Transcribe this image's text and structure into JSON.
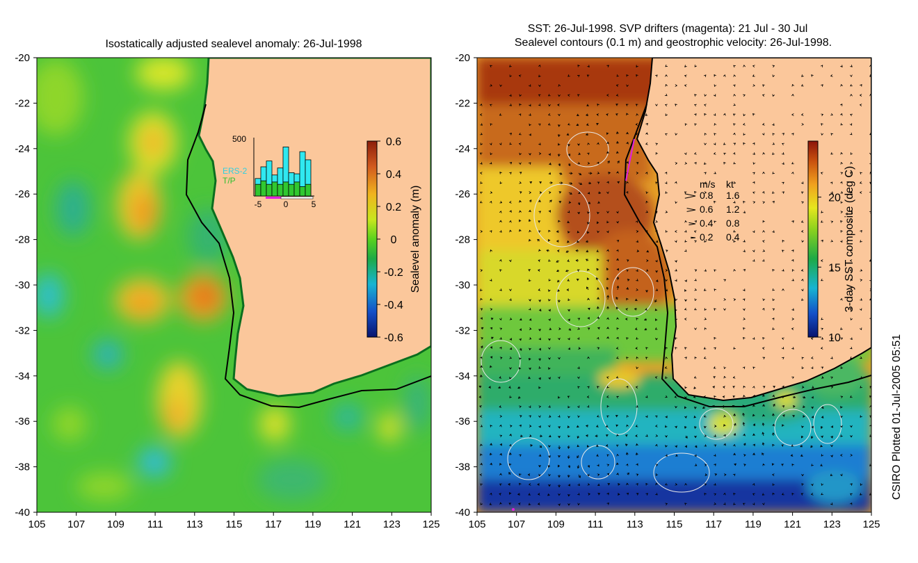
{
  "chart_data": [
    {
      "type": "heatmap",
      "title": "Isostatically adjusted sealevel anomaly: 26-Jul-1998",
      "x_ticks": [
        "105",
        "107",
        "109",
        "111",
        "113",
        "115",
        "117",
        "119",
        "121",
        "123",
        "125"
      ],
      "y_ticks": [
        "-20",
        "-22",
        "-24",
        "-26",
        "-28",
        "-30",
        "-32",
        "-34",
        "-36",
        "-38",
        "-40"
      ],
      "xlim": [
        105,
        125
      ],
      "ylim": [
        -40,
        -20
      ],
      "colorbar": {
        "label": "Sealevel anomaly (m)",
        "ticks": [
          "0.6",
          "0.4",
          "0.2",
          "0",
          "-0.2",
          "-0.4",
          "-0.6"
        ],
        "range": [
          -0.6,
          0.6
        ]
      },
      "inset": {
        "type": "bar",
        "ymax_label": "500",
        "x_ticks": [
          "-5",
          "0",
          "5"
        ],
        "legend": [
          "ERS-2",
          "T/P"
        ],
        "x": [
          -5,
          -4,
          -3,
          -2,
          -1,
          0,
          1,
          2,
          3,
          4
        ],
        "series": [
          {
            "name": "ERS-2",
            "values": [
              150,
              250,
              300,
              180,
              240,
              420,
              200,
              190,
              380,
              310
            ]
          },
          {
            "name": "T/P",
            "values": [
              100,
              130,
              100,
              120,
              100,
              120,
              100,
              120,
              80,
              100
            ]
          }
        ]
      }
    },
    {
      "type": "heatmap",
      "title_line1": "SST: 26-Jul-1998. SVP drifters (magenta): 21 Jul - 30 Jul",
      "title_line2": "Sealevel contours (0.1 m) and geostrophic velocity: 26-Jul-1998.",
      "x_ticks": [
        "105",
        "107",
        "109",
        "111",
        "113",
        "115",
        "117",
        "119",
        "121",
        "123",
        "125"
      ],
      "y_ticks": [
        "-20",
        "-22",
        "-24",
        "-26",
        "-28",
        "-30",
        "-32",
        "-34",
        "-36",
        "-38",
        "-40"
      ],
      "xlim": [
        105,
        125
      ],
      "ylim": [
        -40,
        -20
      ],
      "colorbar": {
        "label": "3-day SST composite (deg C)",
        "ticks": [
          "20",
          "15",
          "10"
        ],
        "range": [
          10,
          24
        ]
      },
      "velocity_legend": {
        "header_ms": "m/s",
        "header_kt": "kt",
        "rows": [
          {
            "ms": "0.8",
            "kt": "1.6"
          },
          {
            "ms": "0.6",
            "kt": "1.2"
          },
          {
            "ms": "0.4",
            "kt": "0.8"
          },
          {
            "ms": "0.2",
            "kt": "0.4"
          }
        ]
      }
    }
  ],
  "footer": "CSIRO Plotted 01-Jul-2005 05:51"
}
